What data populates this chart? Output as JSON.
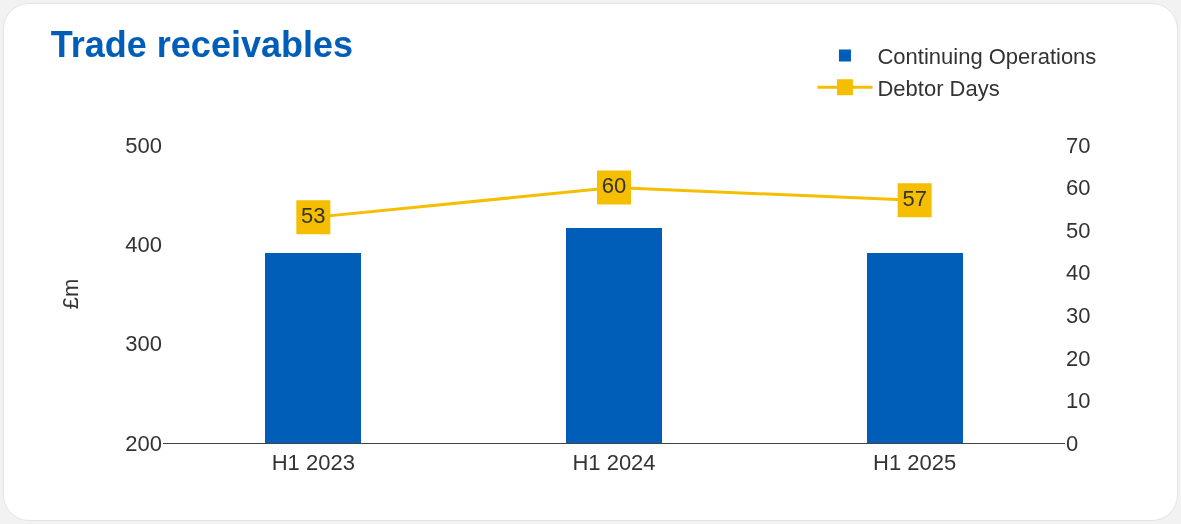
{
  "chart_data": {
    "type": "bar",
    "title": "Trade receivables",
    "ylabel": "£m",
    "categories": [
      "H1 2023",
      "H1 2024",
      "H1 2025"
    ],
    "series": [
      {
        "name": "Continuing Operations",
        "color": "#005eb8",
        "values": [
          391,
          416,
          391
        ]
      },
      {
        "name": "Debtor Days",
        "type": "line",
        "axis": "y2",
        "color": "#f5be00",
        "values": [
          53,
          60,
          57
        ],
        "data_labels": true,
        "marker": "square"
      }
    ],
    "ylim": [
      200,
      500
    ],
    "yticks": [
      200,
      300,
      400,
      500
    ],
    "y2lim": [
      0,
      70
    ],
    "y2ticks": [
      0,
      10,
      20,
      30,
      40,
      50,
      60,
      70
    ],
    "grid": false,
    "legend": "top right",
    "line_style": "solid"
  }
}
